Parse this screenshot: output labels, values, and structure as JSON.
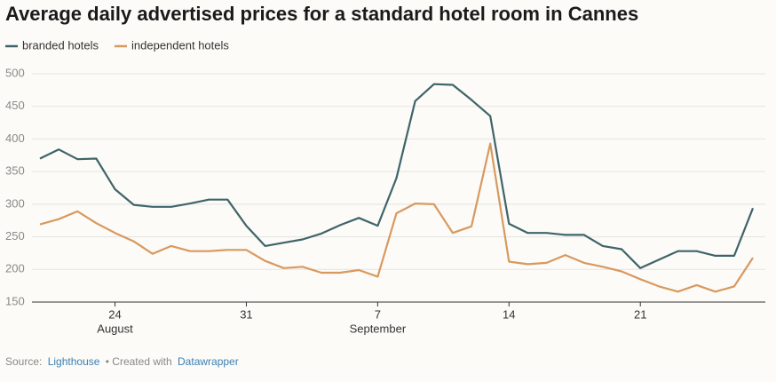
{
  "chart_data": {
    "type": "line",
    "title": "Average daily advertised prices for a standard hotel room in Cannes",
    "x": [
      "08-20",
      "08-21",
      "08-22",
      "08-23",
      "08-24",
      "08-25",
      "08-26",
      "08-27",
      "08-28",
      "08-29",
      "08-30",
      "08-31",
      "09-01",
      "09-02",
      "09-03",
      "09-04",
      "09-05",
      "09-06",
      "09-07",
      "09-08",
      "09-09",
      "09-10",
      "09-11",
      "09-12",
      "09-13",
      "09-14",
      "09-15",
      "09-16",
      "09-17",
      "09-18",
      "09-19",
      "09-20",
      "09-21",
      "09-22",
      "09-23",
      "09-24",
      "09-25",
      "09-26",
      "09-27"
    ],
    "series": [
      {
        "name": "branded hotels",
        "color": "#3e6469",
        "values": [
          370,
          384,
          369,
          370,
          323,
          299,
          296,
          296,
          301,
          307,
          307,
          267,
          236,
          241,
          246,
          255,
          268,
          279,
          267,
          340,
          458,
          484,
          483,
          460,
          435,
          270,
          256,
          256,
          253,
          253,
          236,
          231,
          202,
          215,
          228,
          228,
          221,
          221,
          294
        ]
      },
      {
        "name": "independent hotels",
        "color": "#d8995f",
        "values": [
          269,
          277,
          289,
          271,
          256,
          243,
          224,
          236,
          228,
          228,
          230,
          230,
          213,
          202,
          204,
          195,
          195,
          199,
          189,
          286,
          301,
          300,
          256,
          266,
          393,
          212,
          208,
          210,
          222,
          210,
          204,
          197,
          185,
          174,
          166,
          176,
          166,
          174,
          218
        ]
      }
    ],
    "xticks": [
      {
        "value": "08-24",
        "label": "24"
      },
      {
        "value": "08-31",
        "label": "31"
      },
      {
        "value": "09-07",
        "label": "7"
      },
      {
        "value": "09-14",
        "label": "14"
      },
      {
        "value": "09-21",
        "label": "21"
      }
    ],
    "x_month_labels": [
      {
        "value": "08-24",
        "label": "August"
      },
      {
        "value": "09-07",
        "label": "September"
      }
    ],
    "ylim": [
      150,
      500
    ],
    "yticks": [
      150,
      200,
      250,
      300,
      350,
      400,
      450,
      500
    ],
    "grid": true,
    "source": {
      "label": "Source:",
      "name": "Lighthouse",
      "credit": "• Created with",
      "tool": "Datawrapper"
    }
  }
}
